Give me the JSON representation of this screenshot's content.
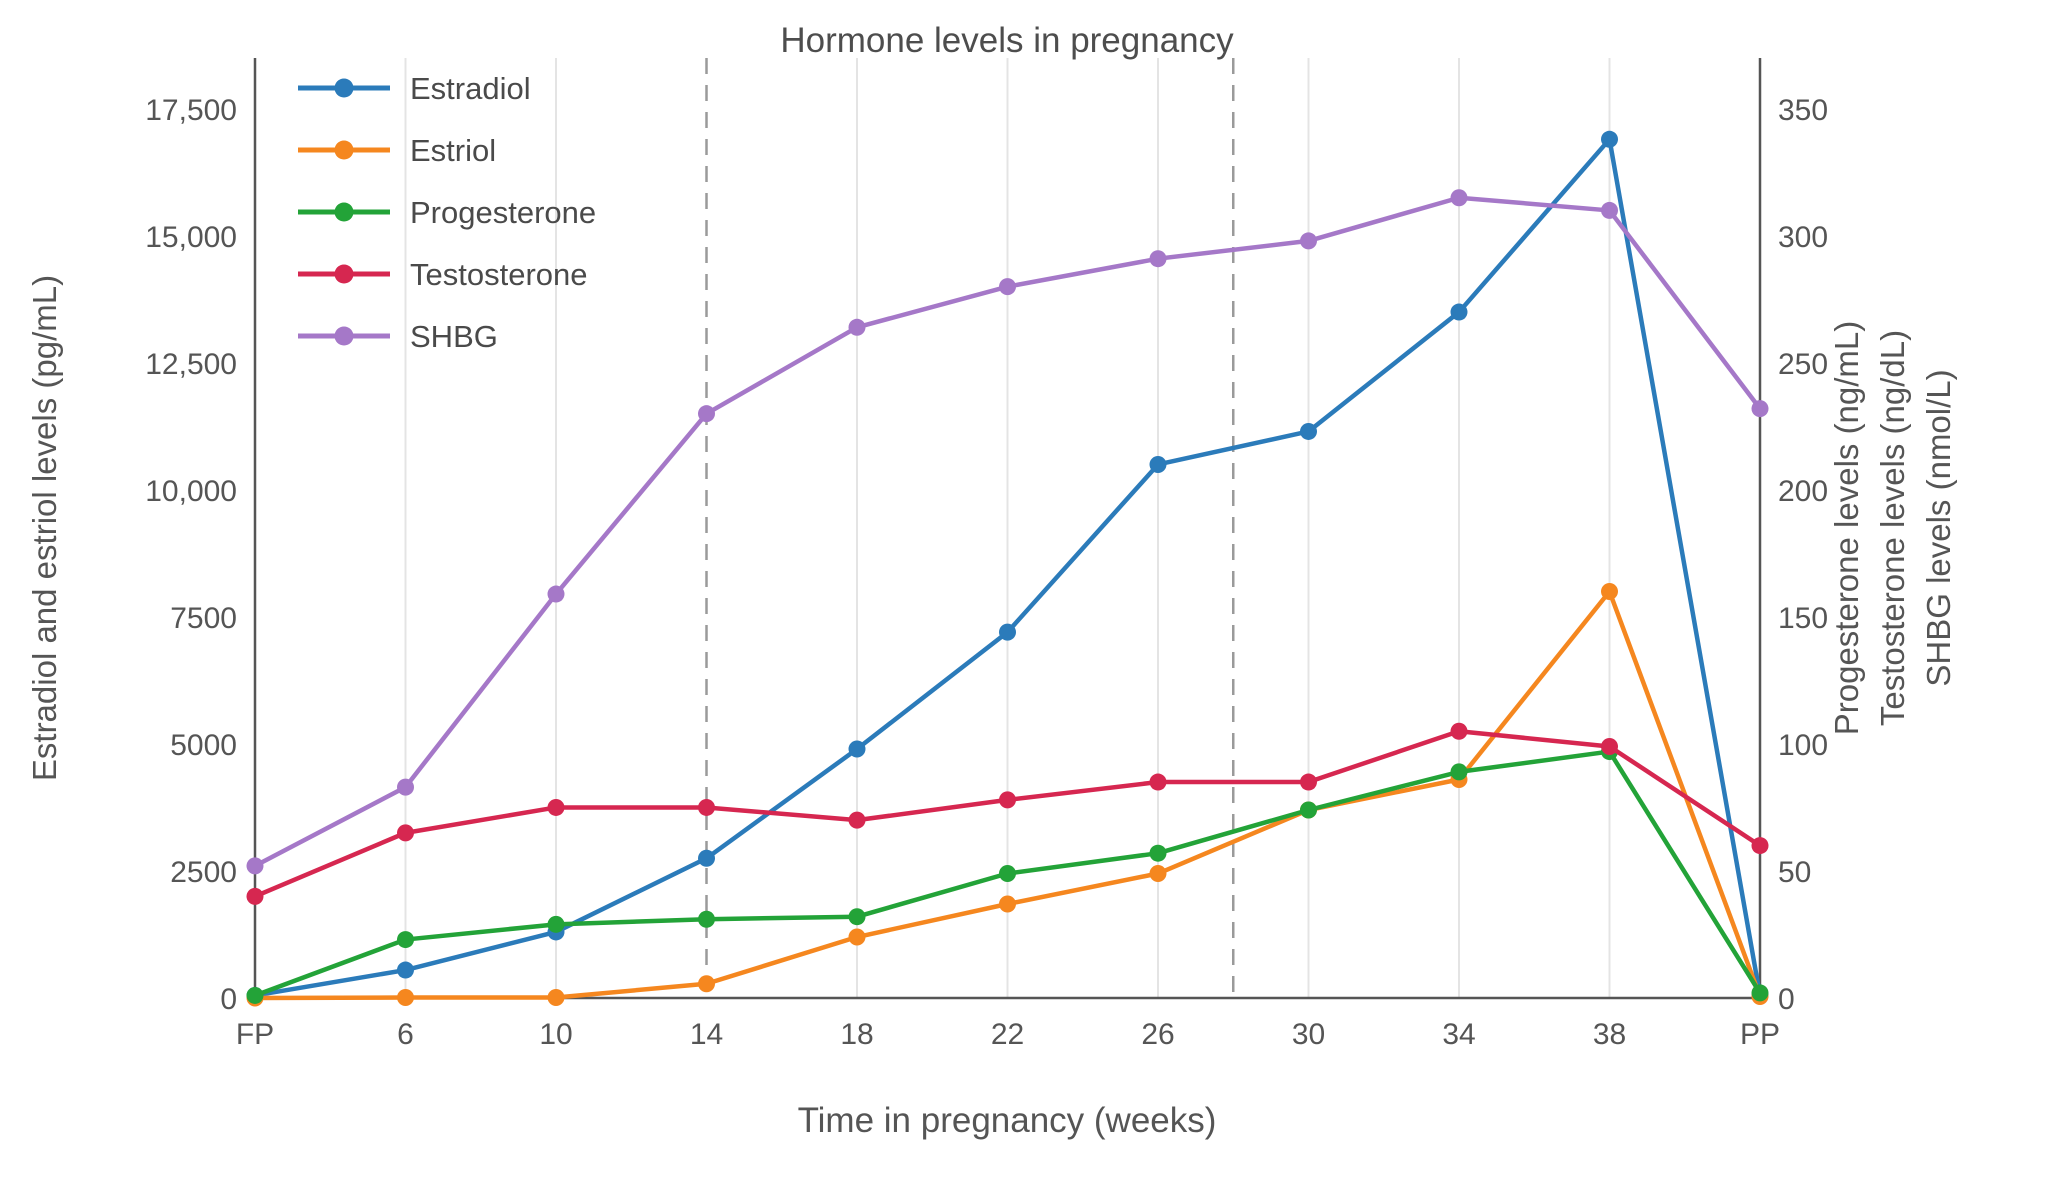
{
  "chart": {
    "title": "Hormone levels in pregnancy",
    "x_title": "Time in pregnancy (weeks)"
  },
  "chart_data": {
    "type": "line",
    "title": "Hormone levels in pregnancy",
    "xlabel": "Time in pregnancy (weeks)",
    "categories": [
      "FP",
      "6",
      "10",
      "14",
      "18",
      "22",
      "26",
      "30",
      "34",
      "38",
      "PP"
    ],
    "left_axis": {
      "title": "Estradiol and estriol levels (pg/mL)",
      "ticks": [
        0,
        2500,
        5000,
        7500,
        10000,
        12500,
        15000,
        17500
      ],
      "tick_labels": [
        "0",
        "2500",
        "5000",
        "7500",
        "10,000",
        "12,500",
        "15,000",
        "17,500"
      ],
      "range": [
        0,
        18500
      ]
    },
    "right_axis": {
      "titles": [
        "Progesterone levels (ng/mL)",
        "Testosterone levels (ng/dL)",
        "SHBG levels (nmol/L)"
      ],
      "ticks": [
        0,
        50,
        100,
        150,
        200,
        250,
        300,
        350
      ],
      "tick_labels": [
        "0",
        "50",
        "100",
        "150",
        "200",
        "250",
        "300",
        "350"
      ],
      "range": [
        0,
        370
      ]
    },
    "series": [
      {
        "name": "Estradiol",
        "axis": "left",
        "color": "#2b7bba",
        "values": [
          50,
          550,
          1300,
          2750,
          4900,
          7200,
          10500,
          11150,
          13500,
          16900,
          50
        ]
      },
      {
        "name": "Estriol",
        "axis": "left",
        "color": "#f5871f",
        "values": [
          0,
          10,
          10,
          280,
          1200,
          1850,
          2450,
          3700,
          4300,
          8000,
          30
        ]
      },
      {
        "name": "Progesterone",
        "axis": "right",
        "color": "#23a338",
        "values": [
          1,
          23,
          29,
          31,
          32,
          49,
          57,
          74,
          89,
          97,
          2
        ]
      },
      {
        "name": "Testosterone",
        "axis": "right",
        "color": "#d62750",
        "values": [
          40,
          65,
          75,
          75,
          70,
          78,
          85,
          85,
          105,
          99,
          60
        ]
      },
      {
        "name": "SHBG",
        "axis": "right",
        "color": "#a578c8",
        "values": [
          52,
          83,
          159,
          230,
          264,
          280,
          291,
          298,
          315,
          310,
          232
        ]
      }
    ],
    "vlines": {
      "dashed_indices": [
        3,
        6.5
      ],
      "solid_indices": [
        0,
        10
      ]
    },
    "grid": "vertical-only",
    "legend_position": "top-left-inside"
  }
}
